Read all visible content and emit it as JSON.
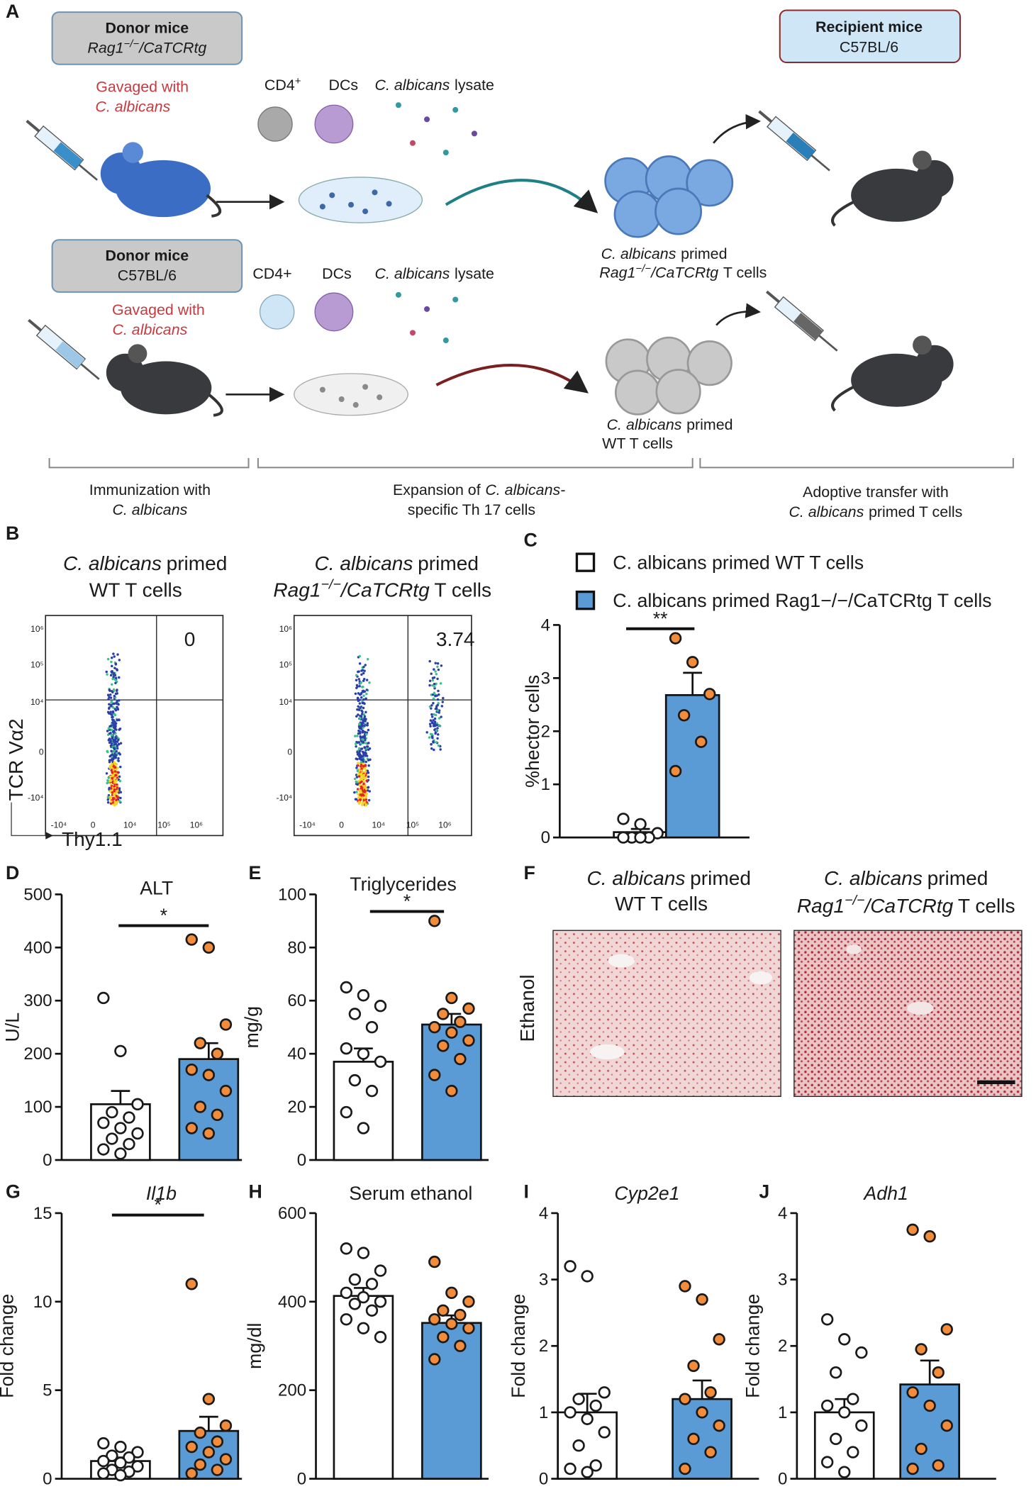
{
  "panel_labels": [
    "A",
    "B",
    "C",
    "D",
    "E",
    "F",
    "G",
    "H",
    "I",
    "J"
  ],
  "panel_a": {
    "top": {
      "box_title": "Donor mice",
      "strain": "Rag1",
      "strain_sup": "−/−",
      "strain_tail": "/CaTCRtg",
      "gavage": "Gavaged with",
      "organism": "C. albicans",
      "cd4": "CD4",
      "cd4_sup": "+",
      "dcs": "DCs",
      "lysate_org": "C. albicans",
      "lysate": "lysate",
      "primed_org": "C. albicans",
      "primed": "primed",
      "cells_strain": "Rag1",
      "cells_sup": "−/−",
      "cells_tail": "/CaTCRtg",
      "cells_end": "T cells"
    },
    "recipient": {
      "box_title": "Recipient mice",
      "strain": "C57BL/6"
    },
    "bottom": {
      "box_title": "Donor mice",
      "strain": "C57BL/6",
      "gavage": "Gavaged with",
      "organism": "C. albicans",
      "cd4": "CD4+",
      "dcs": "DCs",
      "lysate_org": "C. albicans",
      "lysate": "lysate",
      "primed_org": "C. albicans",
      "primed": "primed",
      "cells": "WT T cells"
    },
    "steps": [
      {
        "line1": "Immunization with",
        "line2": "C. albicans"
      },
      {
        "line1_a": "Expansion of",
        "line1_b": "C. albicans-",
        "line2": "specific Th 17 cells"
      },
      {
        "line1": "Adoptive transfer with",
        "line2_a": "C. albicans",
        "line2_b": "primed T cells"
      }
    ]
  },
  "panel_b": {
    "plots": [
      {
        "title_org": "C. albicans",
        "title_rest": "primed",
        "title_line2": "WT T cells",
        "quadrant_value": 0
      },
      {
        "title_org": "C. albicans",
        "title_rest": "primed",
        "strain": "Rag1",
        "sup": "−/−",
        "tail": "/CaTCRtg",
        "title_end": "T cells",
        "quadrant_value": 3.74
      }
    ],
    "y_axis": "TCR Vα2",
    "x_axis": "Thy1.1",
    "yticks": [
      "10⁶",
      "10⁵",
      "10⁴",
      "0",
      "-10⁴"
    ],
    "xticks": [
      "-10⁴",
      "0",
      "10⁴",
      "10⁵",
      "10⁶"
    ]
  },
  "panel_f": {
    "titles": [
      {
        "org": "C. albicans",
        "rest": "primed",
        "line2": "WT T cells"
      },
      {
        "org": "C. albicans",
        "rest": "primed",
        "strain": "Rag1",
        "sup": "−/−",
        "tail": "/CaTCRtg",
        "end": "T cells"
      }
    ],
    "row_label": "Ethanol"
  },
  "chart_data": [
    {
      "type": "bar",
      "ylabel": "%hector cells",
      "ylim": [
        0,
        4
      ],
      "yticks": [
        0,
        1,
        2,
        3,
        4
      ],
      "annotation": "**",
      "series": [
        {
          "name": "C. albicans primed WT T cells",
          "color": "#ffffff",
          "point_color": "#ffffff",
          "values": [
            0.1
          ],
          "error": [
            0.06
          ],
          "points": [
            0.35,
            0.25,
            0.08,
            0,
            0,
            0,
            0
          ]
        },
        {
          "name": "C. albicans primed Rag1−/−/CaTCRtg T cells",
          "color": "#5b9bd5",
          "point_color": "#f28c3a",
          "values": [
            2.68
          ],
          "error": [
            0.42
          ],
          "points": [
            3.75,
            3.3,
            2.7,
            2.3,
            1.8,
            1.25
          ]
        }
      ]
    },
    {
      "type": "bar",
      "title": "ALT",
      "ylabel": "U/L",
      "ylim": [
        0,
        500
      ],
      "yticks": [
        0,
        100,
        200,
        300,
        400,
        500
      ],
      "annotation": "*",
      "series": [
        {
          "color": "#ffffff",
          "point_color": "#ffffff",
          "values": [
            105
          ],
          "error": [
            25
          ],
          "points": [
            305,
            205,
            105,
            90,
            80,
            70,
            60,
            50,
            40,
            30,
            20,
            12
          ]
        },
        {
          "color": "#5b9bd5",
          "point_color": "#f28c3a",
          "values": [
            190
          ],
          "error": [
            30
          ],
          "points": [
            415,
            400,
            255,
            220,
            200,
            170,
            160,
            130,
            100,
            85,
            60,
            50
          ]
        }
      ]
    },
    {
      "type": "bar",
      "title": "Triglycerides",
      "ylabel": "mg/g",
      "ylim": [
        0,
        100
      ],
      "yticks": [
        0,
        20,
        40,
        60,
        80,
        100
      ],
      "annotation": "*",
      "series": [
        {
          "color": "#ffffff",
          "point_color": "#ffffff",
          "values": [
            37
          ],
          "error": [
            5
          ],
          "points": [
            65,
            62,
            58,
            55,
            50,
            42,
            40,
            37,
            30,
            26,
            18,
            12
          ]
        },
        {
          "color": "#5b9bd5",
          "point_color": "#f28c3a",
          "values": [
            51
          ],
          "error": [
            4
          ],
          "points": [
            90,
            61,
            57,
            55,
            52,
            50,
            48,
            45,
            43,
            38,
            32,
            26
          ]
        }
      ]
    },
    {
      "type": "bar",
      "title": "Il1b",
      "ylabel": "Fold change",
      "ylim": [
        0,
        15
      ],
      "yticks": [
        0,
        5,
        10,
        15
      ],
      "annotation": "*",
      "series": [
        {
          "color": "#ffffff",
          "point_color": "#ffffff",
          "values": [
            1.0
          ],
          "error": [
            0.2
          ],
          "points": [
            2.0,
            1.8,
            1.5,
            1.3,
            1.2,
            1.0,
            0.9,
            0.7,
            0.5,
            0.4,
            0.3,
            0.2
          ]
        },
        {
          "color": "#5b9bd5",
          "point_color": "#f28c3a",
          "values": [
            2.7
          ],
          "error": [
            0.8
          ],
          "points": [
            11,
            4.5,
            3.0,
            2.6,
            2.1,
            1.8,
            1.5,
            1.1,
            0.8,
            0.5,
            0.3
          ]
        }
      ]
    },
    {
      "type": "bar",
      "title": "Serum ethanol",
      "ylabel": "mg/dl",
      "ylim": [
        0,
        600
      ],
      "yticks": [
        0,
        200,
        400,
        600
      ],
      "series": [
        {
          "color": "#ffffff",
          "point_color": "#ffffff",
          "values": [
            413
          ],
          "error": [
            18
          ],
          "points": [
            520,
            510,
            470,
            450,
            440,
            420,
            410,
            400,
            395,
            380,
            360,
            340,
            320
          ]
        },
        {
          "color": "#5b9bd5",
          "point_color": "#f28c3a",
          "values": [
            352
          ],
          "error": [
            17
          ],
          "points": [
            490,
            420,
            400,
            380,
            370,
            360,
            350,
            340,
            320,
            300,
            270
          ]
        }
      ]
    },
    {
      "type": "bar",
      "title": "Cyp2e1",
      "ylabel": "Fold change",
      "ylim": [
        0,
        4
      ],
      "yticks": [
        0,
        1,
        2,
        3,
        4
      ],
      "series": [
        {
          "color": "#ffffff",
          "point_color": "#ffffff",
          "values": [
            1.0
          ],
          "error": [
            0.28
          ],
          "points": [
            3.2,
            3.05,
            1.3,
            1.2,
            1.1,
            1.0,
            0.9,
            0.7,
            0.5,
            0.2,
            0.15,
            0.1
          ]
        },
        {
          "color": "#5b9bd5",
          "point_color": "#f28c3a",
          "values": [
            1.2
          ],
          "error": [
            0.28
          ],
          "points": [
            2.9,
            2.7,
            2.1,
            1.7,
            1.3,
            1.2,
            1.0,
            0.8,
            0.6,
            0.4,
            0.15
          ]
        }
      ]
    },
    {
      "type": "bar",
      "title": "Adh1",
      "ylabel": "Fold change",
      "ylim": [
        0,
        4
      ],
      "yticks": [
        0,
        1,
        2,
        3,
        4
      ],
      "series": [
        {
          "color": "#ffffff",
          "point_color": "#ffffff",
          "values": [
            1.0
          ],
          "error": [
            0.2
          ],
          "points": [
            2.4,
            2.1,
            1.9,
            1.6,
            1.2,
            1.1,
            1.0,
            0.8,
            0.6,
            0.4,
            0.25,
            0.1
          ]
        },
        {
          "color": "#5b9bd5",
          "point_color": "#f28c3a",
          "values": [
            1.42
          ],
          "error": [
            0.36
          ],
          "points": [
            3.75,
            3.65,
            2.25,
            1.95,
            1.6,
            1.3,
            1.1,
            0.8,
            0.45,
            0.2,
            0.15
          ]
        }
      ]
    }
  ]
}
